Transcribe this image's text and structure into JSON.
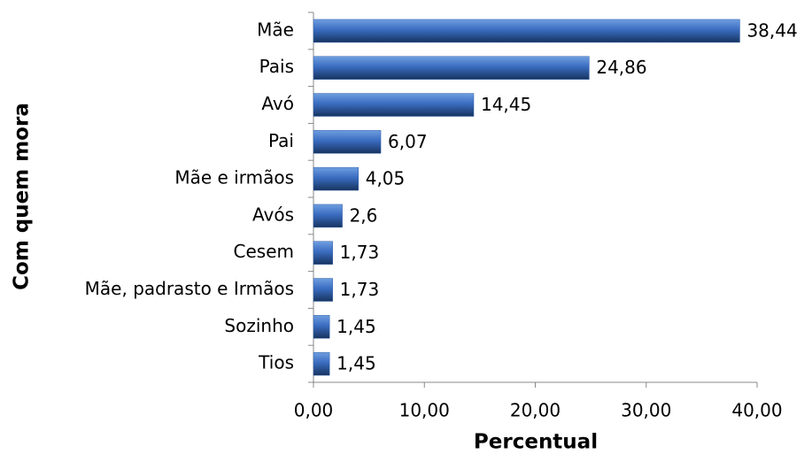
{
  "chart_data": {
    "type": "hbar",
    "xlabel": "Percentual",
    "ylabel": "Com quem mora",
    "categories": [
      "Mãe",
      "Pais",
      "Avó",
      "Pai",
      "Mãe e irmãos",
      "Avós",
      "Cesem",
      "Mãe, padrasto e Irmãos",
      "Sozinho",
      "Tios"
    ],
    "values": [
      38.44,
      24.86,
      14.45,
      6.07,
      4.05,
      2.6,
      1.73,
      1.73,
      1.45,
      1.45
    ],
    "value_labels": [
      "38,44",
      "24,86",
      "14,45",
      "6,07",
      "4,05",
      "2,6",
      "1,73",
      "1,73",
      "1,45",
      "1,45"
    ],
    "color": "#2f5ea8",
    "xlim": [
      0,
      40
    ],
    "xticks": [
      {
        "value": 0,
        "label": "0,00"
      },
      {
        "value": 10,
        "label": "10,00"
      },
      {
        "value": 20,
        "label": "20,00"
      },
      {
        "value": 30,
        "label": "30,00"
      },
      {
        "value": 40,
        "label": "40,00"
      }
    ]
  }
}
